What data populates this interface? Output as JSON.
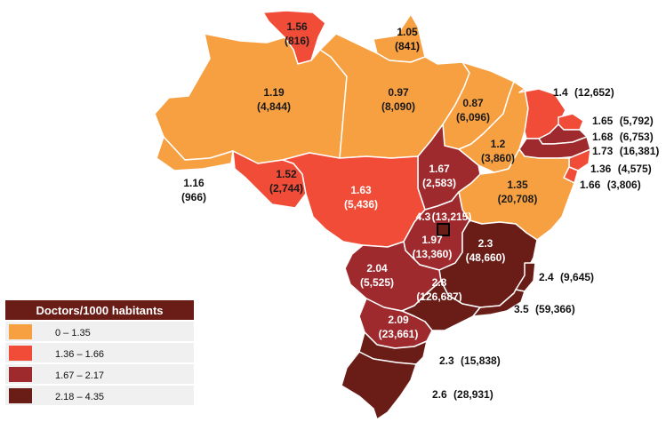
{
  "legend": {
    "title": "Doctors/1000 habitants",
    "classes": [
      {
        "label": "0 – 1.35",
        "color": "#F7A042"
      },
      {
        "label": "1.36 – 1.66",
        "color": "#F04C38"
      },
      {
        "label": "1.67 – 2.17",
        "color": "#9E2A2E"
      },
      {
        "label": "2.18 – 4.35",
        "color": "#6A1C17"
      }
    ]
  },
  "regions": [
    {
      "id": "roraima",
      "rate": "1.56",
      "doctors": "(816)",
      "cls": 1
    },
    {
      "id": "amapa",
      "rate": "1.05",
      "doctors": "(841)",
      "cls": 0
    },
    {
      "id": "amazonas",
      "rate": "1.19",
      "doctors": "(4,844)",
      "cls": 0
    },
    {
      "id": "para",
      "rate": "0.97",
      "doctors": "(8,090)",
      "cls": 0
    },
    {
      "id": "maranhao",
      "rate": "0.87",
      "doctors": "(6,096)",
      "cls": 0
    },
    {
      "id": "piaui",
      "rate": "1.2",
      "doctors": "(3,860)",
      "cls": 0
    },
    {
      "id": "acre",
      "rate": "1.16",
      "doctors": "(966)",
      "cls": 0
    },
    {
      "id": "rondonia",
      "rate": "1.52",
      "doctors": "(2,744)",
      "cls": 1
    },
    {
      "id": "mato-grosso",
      "rate": "1.63",
      "doctors": "(5,436)",
      "cls": 1
    },
    {
      "id": "tocantins",
      "rate": "1.67",
      "doctors": "(2,583)",
      "cls": 2
    },
    {
      "id": "bahia",
      "rate": "1.35",
      "doctors": "(20,708)",
      "cls": 0
    },
    {
      "id": "distrito-federal",
      "rate": "4.3",
      "doctors": "(13,215)",
      "cls": 3
    },
    {
      "id": "goias",
      "rate": "1.97",
      "doctors": "(13,360)",
      "cls": 2
    },
    {
      "id": "minas-gerais",
      "rate": "2.3",
      "doctors": "(48,660)",
      "cls": 3
    },
    {
      "id": "mato-grosso-do-sul",
      "rate": "2.04",
      "doctors": "(5,525)",
      "cls": 2
    },
    {
      "id": "sao-paulo",
      "rate": "2.8",
      "doctors": "(126,687)",
      "cls": 3
    },
    {
      "id": "parana",
      "rate": "2.09",
      "doctors": "(23,661)",
      "cls": 2
    },
    {
      "id": "ceara",
      "rate": "1.4",
      "doctors": "(12,652)",
      "cls": 1
    },
    {
      "id": "rio-grande-do-norte",
      "rate": "1.65",
      "doctors": "(5,792)",
      "cls": 1
    },
    {
      "id": "paraiba",
      "rate": "1.68",
      "doctors": "(6,753)",
      "cls": 2
    },
    {
      "id": "pernambuco",
      "rate": "1.73",
      "doctors": "(16,381)",
      "cls": 2
    },
    {
      "id": "alagoas",
      "rate": "1.36",
      "doctors": "(4,575)",
      "cls": 1
    },
    {
      "id": "sergipe",
      "rate": "1.66",
      "doctors": "(3,806)",
      "cls": 1
    },
    {
      "id": "espirito-santo",
      "rate": "2.4",
      "doctors": "(9,645)",
      "cls": 3
    },
    {
      "id": "rio-de-janeiro",
      "rate": "3.5",
      "doctors": "(59,366)",
      "cls": 3
    },
    {
      "id": "santa-catarina",
      "rate": "2.3",
      "doctors": "(15,838)",
      "cls": 3
    },
    {
      "id": "rio-grande-do-sul",
      "rate": "2.6",
      "doctors": "(28,931)",
      "cls": 3
    }
  ]
}
